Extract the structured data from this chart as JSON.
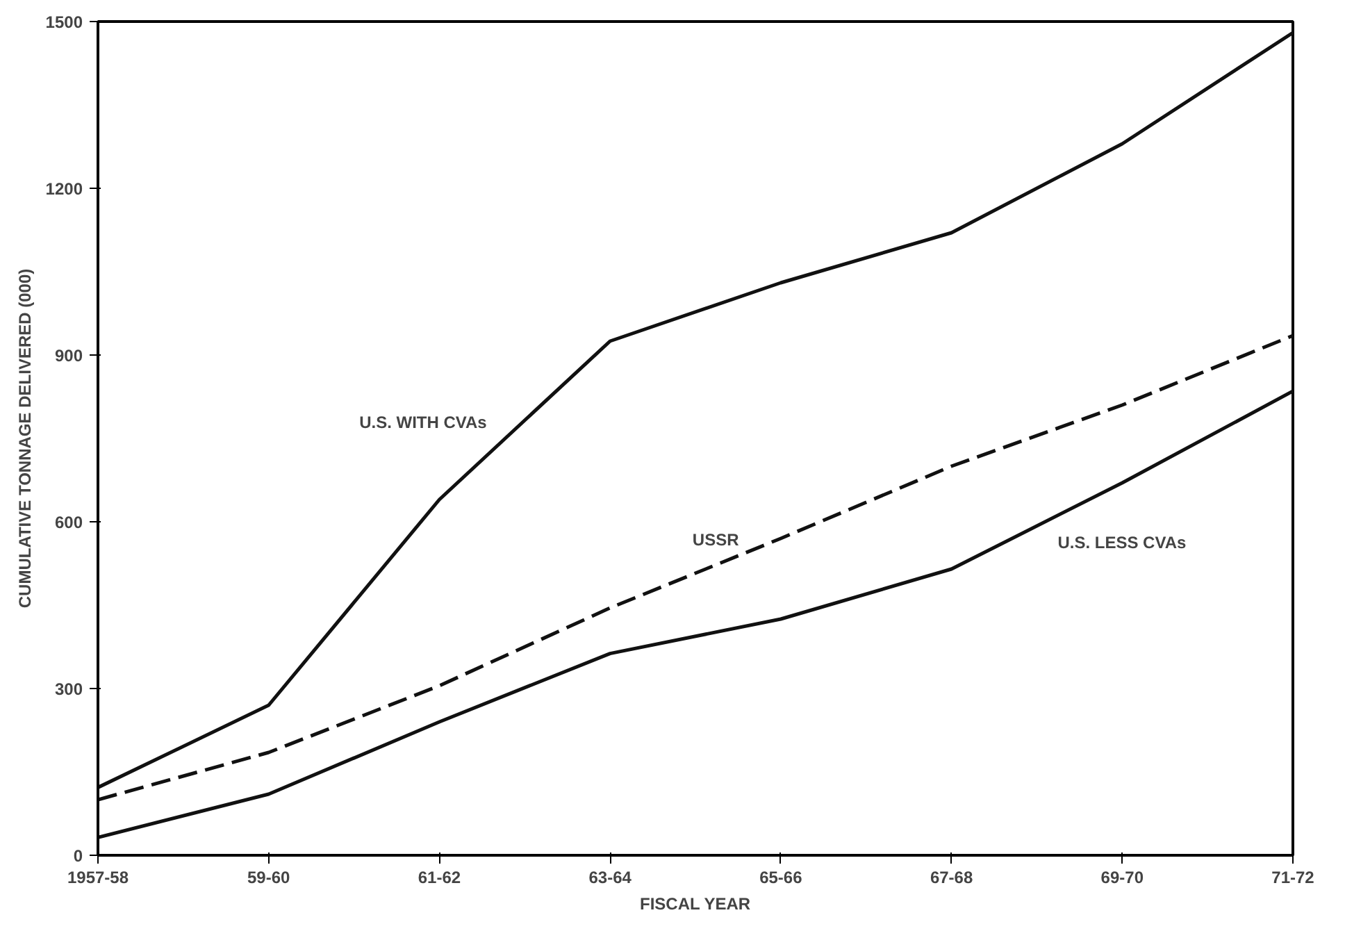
{
  "chart_data": {
    "type": "line",
    "xlabel": "FISCAL YEAR",
    "ylabel": "CUMULATIVE TONNAGE DELIVERED (000)",
    "categories": [
      "1957-58",
      "59-60",
      "61-62",
      "63-64",
      "65-66",
      "67-68",
      "69-70",
      "71-72"
    ],
    "series": [
      {
        "name": "U.S. WITH CVAs",
        "color": "#111111",
        "line_style": "solid",
        "values": [
          122,
          270,
          640,
          925,
          1030,
          1120,
          1280,
          1480
        ]
      },
      {
        "name": "USSR",
        "color": "#111111",
        "line_style": "dashed",
        "values": [
          100,
          185,
          305,
          445,
          570,
          700,
          810,
          935
        ]
      },
      {
        "name": "U.S. LESS CVAs",
        "color": "#111111",
        "line_style": "solid",
        "values": [
          32,
          110,
          240,
          363,
          425,
          515,
          670,
          835
        ]
      }
    ],
    "ylim": [
      0,
      1500
    ],
    "yticks": [
      0,
      300,
      600,
      900,
      1200,
      1500
    ],
    "grid": false,
    "marker": "none"
  }
}
